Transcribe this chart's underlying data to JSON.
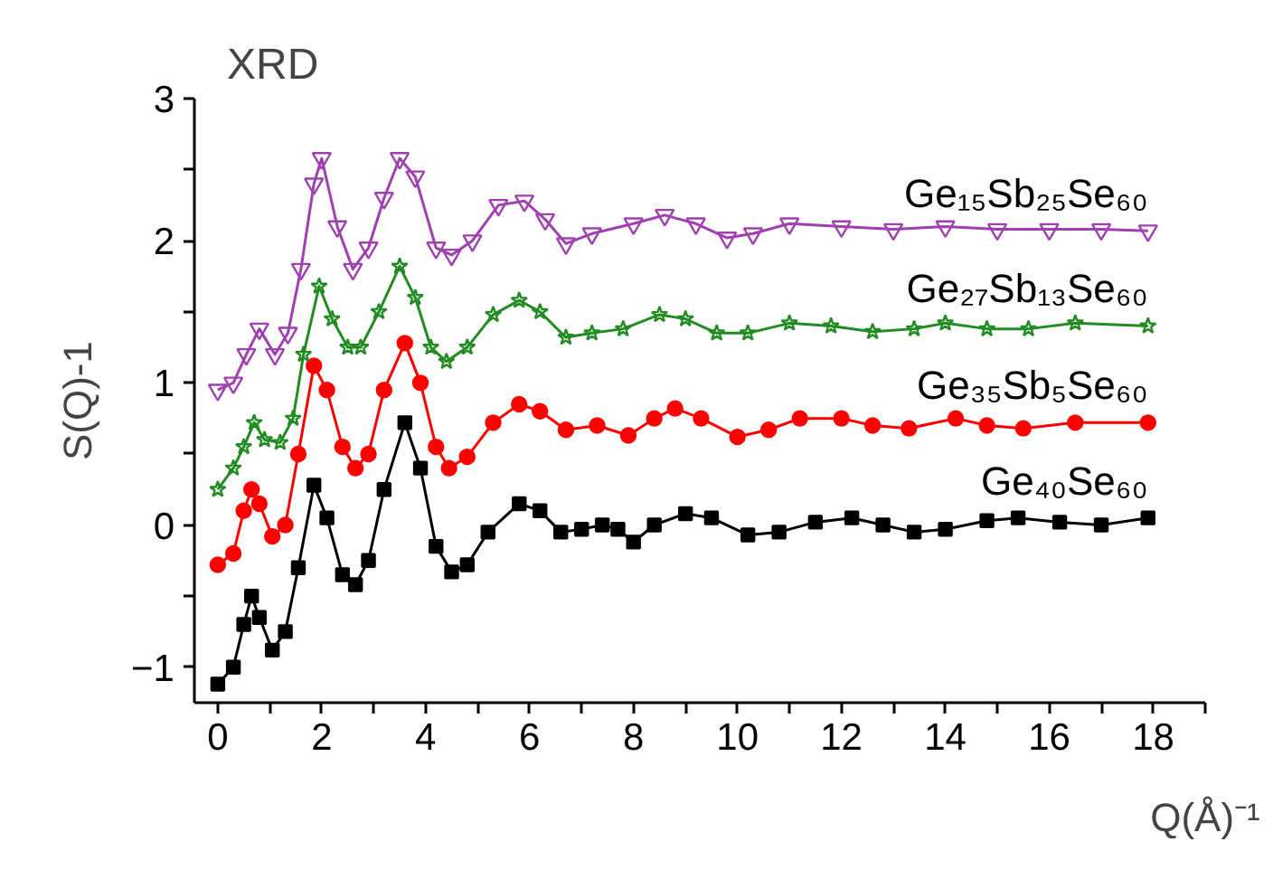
{
  "chart_data": {
    "type": "line",
    "title": "XRD",
    "xlabel": "Q(Å)⁻¹",
    "ylabel": "S(Q)-1",
    "xlim": [
      -0.45,
      19.0
    ],
    "ylim": [
      -1.25,
      3.0
    ],
    "xticks": [
      0,
      {
        "value": 1,
        "label": null
      },
      2,
      {
        "value": 3,
        "label": null
      },
      4,
      {
        "value": 5,
        "label": null
      },
      6,
      {
        "value": 7,
        "label": null
      },
      8,
      {
        "value": 9,
        "label": null
      },
      10,
      {
        "value": 11,
        "label": null
      },
      12,
      {
        "value": 13,
        "label": null
      },
      14,
      {
        "value": 15,
        "label": null
      },
      16,
      {
        "value": 17,
        "label": null
      },
      18,
      {
        "value": 19,
        "label": null
      }
    ],
    "yticks": [
      -1,
      {
        "value": -0.5,
        "label": null
      },
      0,
      {
        "value": 0.5,
        "label": null
      },
      1,
      {
        "value": 1.5,
        "label": null
      },
      2,
      {
        "value": 2.5,
        "label": null
      },
      3
    ],
    "grid": false,
    "series": [
      {
        "name": "Ge₄₀Se₆₀",
        "color": "#000000",
        "marker": "square",
        "x": [
          0,
          0.3,
          0.5,
          0.65,
          0.8,
          1.05,
          1.3,
          1.55,
          1.85,
          2.1,
          2.4,
          2.65,
          2.9,
          3.2,
          3.6,
          3.9,
          4.2,
          4.5,
          4.8,
          5.2,
          5.8,
          6.2,
          6.6,
          7.0,
          7.4,
          7.7,
          8.0,
          8.4,
          9.0,
          9.5,
          10.2,
          10.8,
          11.5,
          12.2,
          12.8,
          13.4,
          14.0,
          14.8,
          15.4,
          16.2,
          17.0,
          17.9
        ],
        "values": [
          -1.12,
          -1.0,
          -0.7,
          -0.5,
          -0.65,
          -0.88,
          -0.75,
          -0.3,
          0.28,
          0.05,
          -0.35,
          -0.42,
          -0.25,
          0.25,
          0.72,
          0.4,
          -0.15,
          -0.33,
          -0.28,
          -0.05,
          0.15,
          0.1,
          -0.05,
          -0.03,
          0.0,
          -0.03,
          -0.12,
          0.0,
          0.08,
          0.05,
          -0.07,
          -0.05,
          0.02,
          0.05,
          0.0,
          -0.05,
          -0.03,
          0.03,
          0.05,
          0.02,
          0.0,
          0.05
        ]
      },
      {
        "name": "Ge₃₅Sb₅Se₆₀",
        "color": "#ff0000",
        "marker": "circle",
        "x": [
          0,
          0.3,
          0.5,
          0.65,
          0.8,
          1.05,
          1.3,
          1.55,
          1.85,
          2.1,
          2.4,
          2.65,
          2.9,
          3.2,
          3.6,
          3.9,
          4.2,
          4.45,
          4.8,
          5.3,
          5.8,
          6.2,
          6.7,
          7.3,
          7.9,
          8.4,
          8.8,
          9.3,
          10.0,
          10.6,
          11.2,
          12.0,
          12.6,
          13.3,
          14.2,
          14.8,
          15.5,
          16.5,
          17.9
        ],
        "values": [
          -0.28,
          -0.2,
          0.1,
          0.25,
          0.15,
          -0.08,
          0.0,
          0.5,
          1.12,
          0.95,
          0.55,
          0.4,
          0.5,
          0.95,
          1.28,
          1.0,
          0.55,
          0.4,
          0.48,
          0.72,
          0.85,
          0.8,
          0.67,
          0.7,
          0.63,
          0.75,
          0.82,
          0.75,
          0.62,
          0.67,
          0.75,
          0.75,
          0.7,
          0.68,
          0.75,
          0.7,
          0.68,
          0.72,
          0.72
        ]
      },
      {
        "name": "Ge₂₇Sb₁₃Se₆₀",
        "color": "#228b22",
        "marker": "star",
        "x": [
          0,
          0.3,
          0.5,
          0.7,
          0.9,
          1.2,
          1.45,
          1.65,
          1.95,
          2.2,
          2.5,
          2.75,
          3.1,
          3.5,
          3.8,
          4.1,
          4.4,
          4.8,
          5.3,
          5.8,
          6.2,
          6.7,
          7.2,
          7.8,
          8.5,
          9.0,
          9.6,
          10.2,
          11.0,
          11.8,
          12.6,
          13.4,
          14.0,
          14.8,
          15.6,
          16.5,
          17.9
        ],
        "values": [
          0.25,
          0.4,
          0.55,
          0.72,
          0.6,
          0.58,
          0.75,
          1.2,
          1.68,
          1.45,
          1.25,
          1.25,
          1.5,
          1.82,
          1.6,
          1.25,
          1.15,
          1.25,
          1.48,
          1.58,
          1.5,
          1.32,
          1.35,
          1.38,
          1.48,
          1.45,
          1.35,
          1.35,
          1.42,
          1.4,
          1.36,
          1.38,
          1.42,
          1.38,
          1.38,
          1.42,
          1.4
        ]
      },
      {
        "name": "Ge₁₅Sb₂₅Se₆₀",
        "color": "#a040b0",
        "marker": "triangle",
        "x": [
          0,
          0.3,
          0.55,
          0.8,
          1.1,
          1.35,
          1.6,
          1.85,
          2.0,
          2.3,
          2.6,
          2.9,
          3.2,
          3.5,
          3.8,
          4.2,
          4.5,
          4.9,
          5.4,
          5.9,
          6.3,
          6.7,
          7.2,
          8.0,
          8.6,
          9.2,
          9.8,
          10.3,
          11.0,
          12.0,
          13.0,
          14.0,
          15.0,
          16.0,
          17.0,
          17.9
        ],
        "values": [
          0.95,
          1.0,
          1.2,
          1.38,
          1.2,
          1.35,
          1.8,
          2.4,
          2.58,
          2.1,
          1.8,
          1.95,
          2.3,
          2.58,
          2.45,
          1.95,
          1.9,
          2.0,
          2.25,
          2.28,
          2.15,
          1.98,
          2.05,
          2.12,
          2.18,
          2.12,
          2.02,
          2.05,
          2.12,
          2.1,
          2.08,
          2.1,
          2.08,
          2.08,
          2.08,
          2.07
        ]
      }
    ]
  }
}
